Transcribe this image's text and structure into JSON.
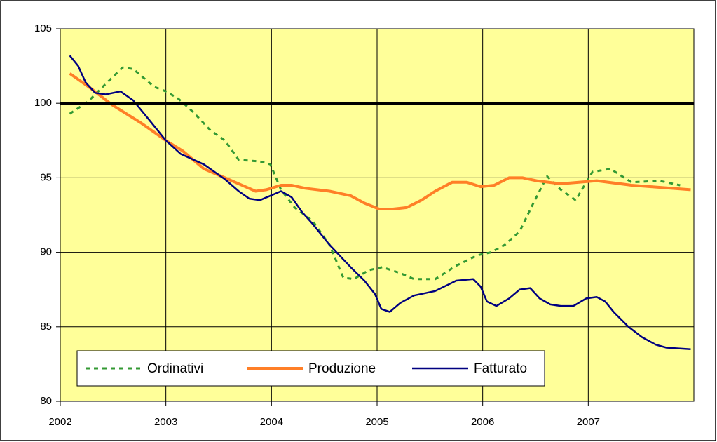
{
  "chart_data": {
    "type": "line",
    "xlim": [
      2002,
      2008
    ],
    "xticks": [
      2002,
      2003,
      2004,
      2005,
      2006,
      2007
    ],
    "ylim": [
      80,
      105
    ],
    "yticks": [
      80,
      85,
      90,
      95,
      100,
      105
    ],
    "grid": true,
    "reference_line": 100,
    "legend": "bottom-left",
    "background": "#ffff99",
    "series": [
      {
        "name": "Ordinativi",
        "color": "#339933",
        "dashed": true,
        "x": [
          2002.09,
          2002.26,
          2002.43,
          2002.59,
          2002.69,
          2002.89,
          2003.0,
          2003.12,
          2003.26,
          2003.42,
          2003.56,
          2003.69,
          2003.89,
          2003.99,
          2004.09,
          2004.22,
          2004.39,
          2004.55,
          2004.68,
          2004.78,
          2004.92,
          2005.05,
          2005.22,
          2005.35,
          2005.55,
          2005.75,
          2005.95,
          2006.08,
          2006.21,
          2006.35,
          2006.48,
          2006.61,
          2006.74,
          2006.88,
          2007.04,
          2007.21,
          2007.41,
          2007.67,
          2007.87
        ],
        "values": [
          99.3,
          100.1,
          101.3,
          102.4,
          102.3,
          101.1,
          100.8,
          100.3,
          99.4,
          98.2,
          97.5,
          96.2,
          96.1,
          95.9,
          94.2,
          93.0,
          92.1,
          90.5,
          88.3,
          88.2,
          88.8,
          89.0,
          88.6,
          88.2,
          88.2,
          89.1,
          89.8,
          90.0,
          90.5,
          91.4,
          93.3,
          95.1,
          94.2,
          93.5,
          95.4,
          95.6,
          94.7,
          94.8,
          94.5
        ]
      },
      {
        "name": "Produzione",
        "color": "#ff7f27",
        "width": 4,
        "x": [
          2002.09,
          2002.29,
          2002.49,
          2002.76,
          2003.0,
          2003.16,
          2003.36,
          2003.56,
          2003.69,
          2003.85,
          2003.95,
          2004.09,
          2004.19,
          2004.32,
          2004.55,
          2004.75,
          2004.88,
          2005.02,
          2005.15,
          2005.28,
          2005.42,
          2005.55,
          2005.71,
          2005.85,
          2005.98,
          2006.11,
          2006.25,
          2006.38,
          2006.51,
          2006.74,
          2006.91,
          2007.08,
          2007.41,
          2007.97
        ],
        "values": [
          102.0,
          101.0,
          99.9,
          98.7,
          97.5,
          96.8,
          95.6,
          95.0,
          94.6,
          94.1,
          94.2,
          94.5,
          94.5,
          94.3,
          94.1,
          93.8,
          93.3,
          92.9,
          92.9,
          93.0,
          93.5,
          94.1,
          94.7,
          94.7,
          94.4,
          94.5,
          95.0,
          95.0,
          94.8,
          94.6,
          94.7,
          94.8,
          94.5,
          94.2
        ]
      },
      {
        "name": "Fatturato",
        "color": "#000080",
        "width": 2.5,
        "x": [
          2002.09,
          2002.17,
          2002.24,
          2002.33,
          2002.43,
          2002.57,
          2002.69,
          2002.84,
          2003.0,
          2003.14,
          2003.36,
          2003.56,
          2003.69,
          2003.79,
          2003.89,
          2004.09,
          2004.19,
          2004.29,
          2004.39,
          2004.55,
          2004.75,
          2004.88,
          2004.98,
          2005.04,
          2005.12,
          2005.22,
          2005.35,
          2005.55,
          2005.75,
          2005.91,
          2005.98,
          2006.04,
          2006.13,
          2006.25,
          2006.35,
          2006.45,
          2006.54,
          2006.64,
          2006.74,
          2006.86,
          2006.98,
          2007.08,
          2007.16,
          2007.24,
          2007.38,
          2007.51,
          2007.64,
          2007.74,
          2007.97
        ],
        "values": [
          103.2,
          102.5,
          101.4,
          100.7,
          100.6,
          100.8,
          100.2,
          98.9,
          97.5,
          96.6,
          95.9,
          94.9,
          94.1,
          93.6,
          93.5,
          94.1,
          93.7,
          92.7,
          91.9,
          90.5,
          89.0,
          88.1,
          87.2,
          86.2,
          86.0,
          86.6,
          87.1,
          87.4,
          88.1,
          88.2,
          87.7,
          86.7,
          86.4,
          86.9,
          87.5,
          87.6,
          86.9,
          86.5,
          86.4,
          86.4,
          86.9,
          87.0,
          86.7,
          86.0,
          85.0,
          84.3,
          83.8,
          83.6,
          83.5
        ]
      }
    ]
  }
}
